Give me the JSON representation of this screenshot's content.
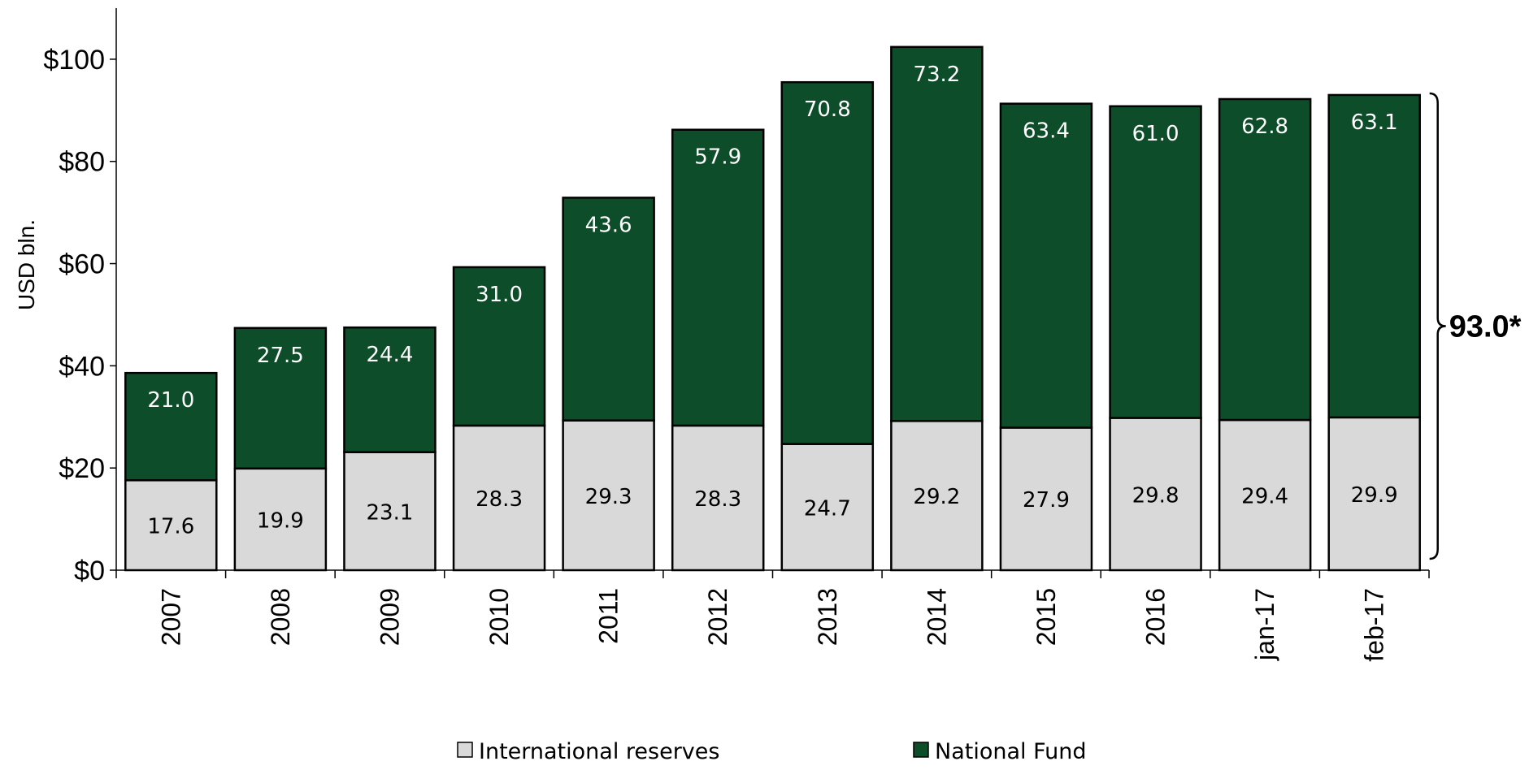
{
  "colors": {
    "international_reserves": "#d9d9d9",
    "national_fund": "#0e4d2a",
    "bar_stroke": "#000000",
    "label_on_light": "#000000",
    "label_on_dark": "#ffffff"
  },
  "annotation": {
    "total_label": "93.0*"
  },
  "chart_data": {
    "type": "bar",
    "stacked": true,
    "title": "",
    "xlabel": "",
    "ylabel": "USD bln.",
    "ylim": [
      0,
      110
    ],
    "yticks": [
      0,
      20,
      40,
      60,
      80,
      100
    ],
    "ytick_labels": [
      "$0",
      "$20",
      "$40",
      "$60",
      "$80",
      "$100"
    ],
    "categories": [
      "2007",
      "2008",
      "2009",
      "2010",
      "2011",
      "2012",
      "2013",
      "2014",
      "2015",
      "2016",
      "jan-17",
      "feb-17"
    ],
    "series": [
      {
        "name": "International reserves",
        "values": [
          17.6,
          19.9,
          23.1,
          28.3,
          29.3,
          28.3,
          24.7,
          29.2,
          27.9,
          29.8,
          29.4,
          29.9
        ]
      },
      {
        "name": "National Fund",
        "values": [
          21.0,
          27.5,
          24.4,
          31.0,
          43.6,
          57.9,
          70.8,
          73.2,
          63.4,
          61.0,
          62.8,
          63.1
        ]
      }
    ],
    "data_labels": {
      "International reserves": [
        "17.6",
        "19.9",
        "23.1",
        "28.3",
        "29.3",
        "28.3",
        "24.7",
        "29.2",
        "27.9",
        "29.8",
        "29.4",
        "29.9"
      ],
      "National Fund": [
        "21.0",
        "27.5",
        "24.4",
        "31.0",
        "43.6",
        "57.9",
        "70.8",
        "73.2",
        "63.4",
        "61.0",
        "62.8",
        "63.1"
      ]
    },
    "grid": false,
    "legend_position": "bottom"
  }
}
